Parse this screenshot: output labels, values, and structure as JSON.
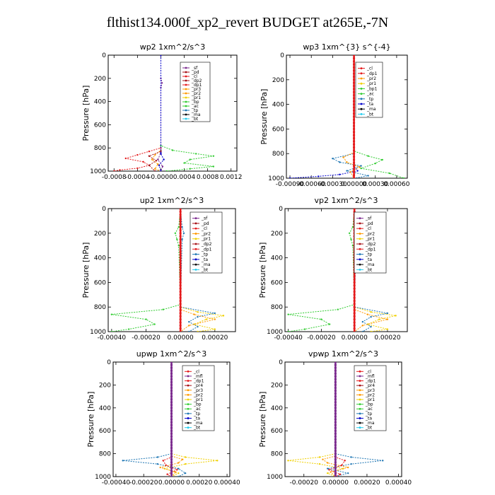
{
  "figure": {
    "title": "flthist134.000f_xp2_revert  BUDGET at265E,-7N"
  },
  "colors": {
    "red": "#e41a1c",
    "darkred": "#a50f15",
    "purple": "#7b2a8e",
    "orange": "#ff9900",
    "yellow": "#f0d000",
    "green": "#33cc33",
    "cyan": "#22ccee",
    "blue": "#0000cc",
    "steelblue": "#1f77b4",
    "black": "#000000"
  },
  "chart_data": [
    {
      "type": "line",
      "title": "wp2   1xm^2/s^3",
      "ylabel": "Pressure  [hPa]",
      "ylim": [
        1000,
        0
      ],
      "xlim": [
        -0.0009,
        0.0013
      ],
      "y_ticks": [
        0,
        200,
        400,
        600,
        800,
        1000
      ],
      "x_ticks": [
        "-0.0008",
        "-0.0004",
        "-0.0000",
        "0.0004",
        "0.0008",
        "0.0012"
      ],
      "x_tick_values": [
        -0.0008,
        -0.0004,
        0.0,
        0.0004,
        0.0008,
        0.0012
      ],
      "legend": [
        "_sf",
        "_pd",
        "_cl",
        "_dp2",
        "_dp1",
        "_pr3",
        "_pr2",
        "_pr1",
        "_bp",
        "_ac",
        "_tp",
        "_ma",
        "_bt"
      ],
      "series": [
        {
          "name": "_ac",
          "color": "green",
          "y": [
            0,
            780,
            820,
            850,
            870,
            900,
            930,
            960,
            980,
            1000
          ],
          "x": [
            0,
            0,
            0.0002,
            0.0006,
            0.0009,
            0.0005,
            0.0004,
            0.0009,
            0.0005,
            0.0001
          ]
        },
        {
          "name": "_dp1",
          "color": "red",
          "y": [
            0,
            800,
            830,
            860,
            890,
            920,
            950,
            975,
            990,
            1000
          ],
          "x": [
            0,
            0,
            -0.0002,
            -0.0004,
            -0.0006,
            -0.0003,
            -0.0002,
            -0.0004,
            -0.0007,
            -0.0008
          ]
        },
        {
          "name": "_pr2",
          "color": "orange",
          "y": [
            0,
            820,
            860,
            900,
            940,
            980,
            1000
          ],
          "x": [
            0,
            0,
            -0.0001,
            -0.00015,
            -5e-05,
            -0.0001,
            0
          ]
        },
        {
          "name": "_dp2",
          "color": "darkred",
          "y": [
            0,
            830,
            870,
            910,
            950,
            1000
          ],
          "x": [
            0,
            0,
            -0.0002,
            -8e-05,
            -0.0002,
            -0.0001
          ]
        },
        {
          "name": "_pd",
          "color": "purple",
          "y": [
            0,
            200,
            240,
            280,
            840,
            900,
            960,
            1000
          ],
          "x": [
            0,
            0,
            2e-05,
            0,
            0,
            -5e-05,
            3e-05,
            0
          ]
        },
        {
          "name": "_tp",
          "color": "blue",
          "y": [
            0,
            850,
            900,
            950,
            1000
          ],
          "x": [
            0,
            0,
            5e-05,
            -3e-05,
            0
          ]
        }
      ]
    },
    {
      "type": "line",
      "title": "wp3   1xm^{3} s^{-4}",
      "ylabel": "Pressure  [hPa]",
      "ylim": [
        1000,
        0
      ],
      "xlim": [
        -0.00095,
        0.00075
      ],
      "y_ticks": [
        0,
        200,
        400,
        600,
        800,
        1000
      ],
      "x_ticks": [
        "-0.00090",
        "-0.00060",
        "-0.00030",
        "0.00000",
        "0.00030",
        "0.00060"
      ],
      "x_tick_values": [
        -0.0009,
        -0.0006,
        -0.0003,
        0.0,
        0.0003,
        0.0006
      ],
      "legend": [
        "_cl",
        "_dp1",
        "_pr2",
        "_pr1",
        "_bp1",
        "_ac",
        "_tp",
        "_ta",
        "_ma",
        "_bt"
      ],
      "series": [
        {
          "name": "_ta",
          "color": "blue",
          "y": [
            0,
            900,
            940,
            970,
            985,
            1000
          ],
          "x": [
            0,
            0,
            5e-05,
            -0.0002,
            -0.0005,
            -0.0009
          ]
        },
        {
          "name": "_ac",
          "color": "green",
          "y": [
            0,
            780,
            820,
            850,
            880,
            920,
            960,
            1000
          ],
          "x": [
            0,
            0,
            0.0002,
            0.0004,
            0.0003,
            0.0001,
            0.0005,
            0.0007
          ]
        },
        {
          "name": "_tp",
          "color": "steelblue",
          "y": [
            0,
            800,
            840,
            870,
            900,
            940,
            980,
            1000
          ],
          "x": [
            0,
            0,
            -0.0003,
            -0.0002,
            0.0001,
            -0.0001,
            0.0002,
            0
          ]
        },
        {
          "name": "_pr2",
          "color": "orange",
          "y": [
            0,
            790,
            830,
            870,
            910,
            950,
            1000
          ],
          "x": [
            0,
            0,
            -0.00015,
            -0.0001,
            8e-05,
            -5e-05,
            0
          ]
        },
        {
          "name": "_dp1",
          "color": "red",
          "y": [
            0,
            1000
          ],
          "x": [
            0,
            0
          ]
        }
      ]
    },
    {
      "type": "line",
      "title": "up2   1xm^2/s^3",
      "ylabel": "Pressure  [hPa]",
      "ylim": [
        1000,
        0
      ],
      "xlim": [
        -0.00042,
        0.00032
      ],
      "y_ticks": [
        0,
        200,
        400,
        600,
        800,
        1000
      ],
      "x_ticks": [
        "-0.00040",
        "-0.00020",
        "0.00000",
        "0.00020"
      ],
      "x_tick_values": [
        -0.0004,
        -0.0002,
        0.0,
        0.0002
      ],
      "legend": [
        "_sf",
        "_pd",
        "_cl",
        "_pr2",
        "_pr1",
        "_dp2",
        "_dp1",
        "_tp",
        "_ta",
        "_ma",
        "_bt"
      ],
      "series": [
        {
          "name": "_dp1",
          "color": "green",
          "y": [
            0,
            150,
            200,
            250,
            300,
            780,
            820,
            860,
            900,
            940,
            980,
            1000
          ],
          "x": [
            0,
            -1e-05,
            -3e-05,
            -2e-05,
            -1e-05,
            0,
            -0.0001,
            -0.0004,
            -0.0002,
            -0.00015,
            -0.0003,
            -0.0004
          ]
        },
        {
          "name": "_pr1",
          "color": "yellow",
          "y": [
            0,
            800,
            840,
            870,
            900,
            940,
            980,
            1000
          ],
          "x": [
            0,
            0,
            0.0001,
            0.00025,
            0.00015,
            8e-05,
            0.0002,
            0.0001
          ]
        },
        {
          "name": "_tp",
          "color": "steelblue",
          "y": [
            0,
            150,
            200,
            250,
            800,
            850,
            880,
            920,
            960,
            1000
          ],
          "x": [
            0,
            1e-05,
            2e-05,
            1e-05,
            0,
            0.0002,
            0.0001,
            5e-05,
            0.0001,
            5e-05
          ]
        },
        {
          "name": "_pr2",
          "color": "orange",
          "y": [
            0,
            820,
            860,
            900,
            950,
            1000
          ],
          "x": [
            0,
            0,
            8e-05,
            0.0002,
            5e-05,
            0
          ]
        },
        {
          "name": "_cl",
          "color": "red",
          "y": [
            0,
            1000
          ],
          "x": [
            0,
            0
          ]
        }
      ]
    },
    {
      "type": "line",
      "title": "vp2   1xm^2/s^3",
      "ylabel": "Pressure  [hPa]",
      "ylim": [
        1000,
        0
      ],
      "xlim": [
        -0.00042,
        0.00032
      ],
      "y_ticks": [
        0,
        200,
        400,
        600,
        800,
        1000
      ],
      "x_ticks": [
        "-0.00040",
        "-0.00020",
        "0.00000",
        "0.00020"
      ],
      "x_tick_values": [
        -0.0004,
        -0.0002,
        0.0,
        0.0002
      ],
      "legend": [
        "_sf",
        "_pd",
        "_cl",
        "_pr2",
        "_pr1",
        "_dp2",
        "_dp1",
        "_tp",
        "_ta",
        "_ma",
        "_bt"
      ],
      "series": [
        {
          "name": "_dp1",
          "color": "green",
          "y": [
            0,
            150,
            200,
            250,
            300,
            780,
            820,
            860,
            900,
            940,
            980,
            1000
          ],
          "x": [
            0,
            -1e-05,
            -3e-05,
            -2e-05,
            -1e-05,
            0,
            -0.0001,
            -0.0004,
            -0.0002,
            -0.00015,
            -0.0003,
            -0.0004
          ]
        },
        {
          "name": "_pr1",
          "color": "yellow",
          "y": [
            0,
            800,
            840,
            870,
            900,
            940,
            980,
            1000
          ],
          "x": [
            0,
            0,
            0.0001,
            0.00025,
            0.00015,
            8e-05,
            0.0002,
            0.0001
          ]
        },
        {
          "name": "_tp",
          "color": "steelblue",
          "y": [
            0,
            150,
            200,
            250,
            800,
            850,
            880,
            920,
            960,
            1000
          ],
          "x": [
            0,
            2e-05,
            4e-05,
            1e-05,
            0,
            0.0002,
            0.0001,
            5e-05,
            0.0001,
            5e-05
          ]
        },
        {
          "name": "_pr2",
          "color": "orange",
          "y": [
            0,
            820,
            860,
            900,
            950,
            1000
          ],
          "x": [
            0,
            0,
            8e-05,
            0.0002,
            5e-05,
            0
          ]
        },
        {
          "name": "_cl",
          "color": "red",
          "y": [
            0,
            1000
          ],
          "x": [
            0,
            0
          ]
        }
      ]
    },
    {
      "type": "line",
      "title": "upwp   1xm^2/s^3",
      "ylabel": "Pressure  [hPa]",
      "ylim": [
        1000,
        0
      ],
      "xlim": [
        -0.00042,
        0.00042
      ],
      "y_ticks": [
        0,
        200,
        400,
        600,
        800,
        1000
      ],
      "x_ticks": [
        "-0.00040",
        "-0.00020",
        "0.00000",
        "0.00020",
        "0.00040"
      ],
      "x_tick_values": [
        -0.0004,
        -0.0002,
        0.0,
        0.0002,
        0.0004
      ],
      "legend": [
        "_cl",
        "_mfl",
        "_dp1",
        "_pr4",
        "_pr3",
        "_pr2",
        "_pr1",
        "_bp",
        "_ac",
        "_tp",
        "_ta",
        "_ma",
        "_bt"
      ],
      "series": [
        {
          "name": "_tp",
          "color": "steelblue",
          "y": [
            0,
            800,
            830,
            860,
            890,
            930,
            970,
            1000
          ],
          "x": [
            0,
            0,
            -0.0001,
            -0.00035,
            -0.0001,
            5e-05,
            0.0001,
            5e-05
          ]
        },
        {
          "name": "_pr1",
          "color": "yellow",
          "y": [
            0,
            800,
            830,
            860,
            890,
            930,
            970,
            1000
          ],
          "x": [
            0,
            0,
            0.0001,
            0.00033,
            0.0001,
            -5e-05,
            5e-05,
            0
          ]
        },
        {
          "name": "_pr2",
          "color": "orange",
          "y": [
            0,
            820,
            850,
            880,
            920,
            960,
            1000
          ],
          "x": [
            0,
            0,
            8e-05,
            5e-05,
            -8e-05,
            3e-05,
            0
          ]
        },
        {
          "name": "_dp1",
          "color": "red",
          "y": [
            0,
            830,
            860,
            900,
            940,
            980,
            1000
          ],
          "x": [
            0,
            0,
            -6e-05,
            -4e-05,
            4e-05,
            -3e-05,
            0
          ]
        },
        {
          "name": "_cl",
          "color": "purple",
          "y": [
            0,
            1000
          ],
          "x": [
            0,
            0
          ]
        }
      ]
    },
    {
      "type": "line",
      "title": "vpwp   1xm^2/s^3",
      "ylabel": "Pressure  [hPa]",
      "ylim": [
        1000,
        0
      ],
      "xlim": [
        -0.00032,
        0.00042
      ],
      "y_ticks": [
        0,
        200,
        400,
        600,
        800,
        1000
      ],
      "x_ticks": [
        "-0.00020",
        "0.00000",
        "0.00020",
        "0.00040"
      ],
      "x_tick_values": [
        -0.0002,
        0.0,
        0.0002,
        0.0004
      ],
      "legend": [
        "_cl",
        "_mfl",
        "_dp1",
        "_pr4",
        "_pr3",
        "_pr2",
        "_pr1",
        "_bp",
        "_ac",
        "_tp",
        "_ta",
        "_ma",
        "_bt"
      ],
      "series": [
        {
          "name": "_tp",
          "color": "steelblue",
          "y": [
            0,
            800,
            830,
            860,
            890,
            930,
            970,
            1000
          ],
          "x": [
            0,
            0,
            0.0001,
            0.0003,
            0.0001,
            -5e-05,
            8e-05,
            0
          ]
        },
        {
          "name": "_pr1",
          "color": "yellow",
          "y": [
            0,
            800,
            830,
            860,
            890,
            930,
            970,
            1000
          ],
          "x": [
            0,
            0,
            -0.0001,
            -0.0003,
            -0.0001,
            5e-05,
            -5e-05,
            0
          ]
        },
        {
          "name": "_pr2",
          "color": "orange",
          "y": [
            0,
            820,
            850,
            880,
            920,
            960,
            1000
          ],
          "x": [
            0,
            0,
            -8e-05,
            -5e-05,
            8e-05,
            -3e-05,
            0
          ]
        },
        {
          "name": "_dp1",
          "color": "red",
          "y": [
            0,
            830,
            860,
            900,
            940,
            980,
            1000
          ],
          "x": [
            0,
            0,
            6e-05,
            4e-05,
            -4e-05,
            3e-05,
            0
          ]
        },
        {
          "name": "_cl",
          "color": "purple",
          "y": [
            0,
            1000
          ],
          "x": [
            0,
            0
          ]
        }
      ]
    }
  ]
}
